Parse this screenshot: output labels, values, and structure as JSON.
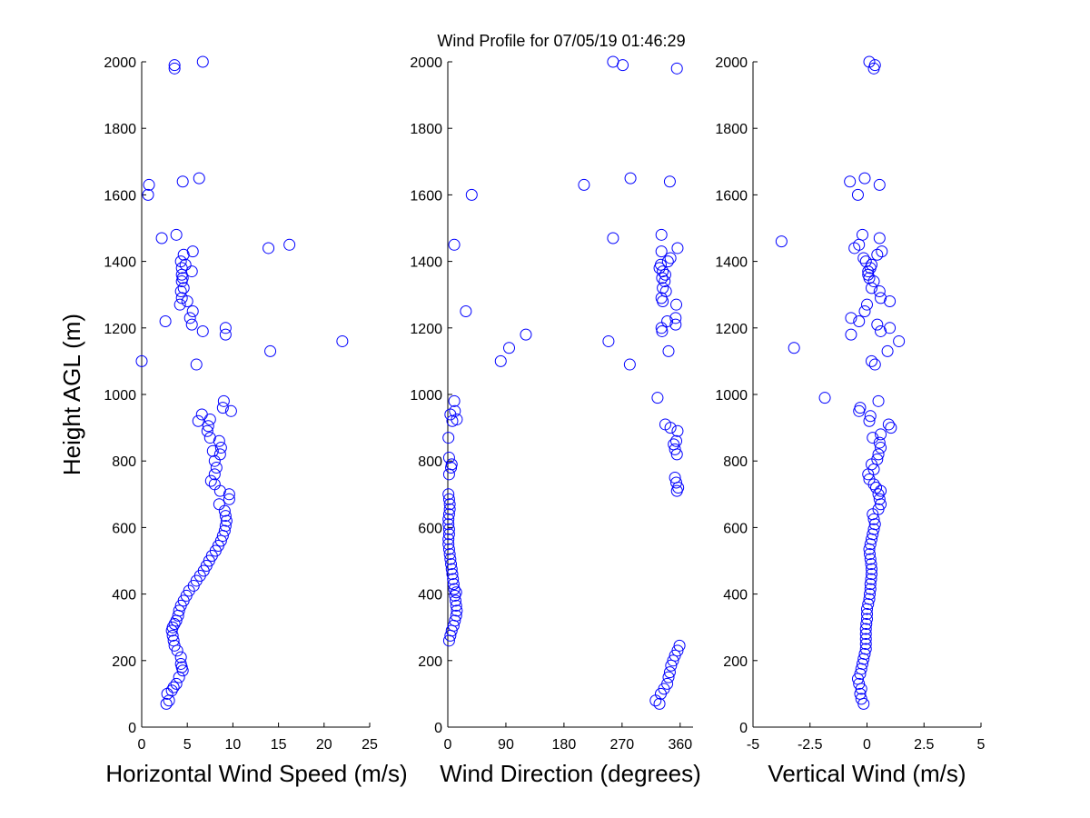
{
  "figure_title": "Wind Profile for  07/05/19 01:46:29",
  "marker_color": "#0000ff",
  "marker_style": "open-circle",
  "chart_data": [
    {
      "type": "scatter",
      "title": "",
      "xlabel": "Horizontal Wind Speed (m/s)",
      "ylabel": "Height AGL (m)",
      "xlim": [
        0,
        25
      ],
      "ylim": [
        0,
        2000
      ],
      "xticks": [
        "0",
        "5",
        "10",
        "15",
        "20",
        "25"
      ],
      "yticks": [
        "0",
        "200",
        "400",
        "600",
        "800",
        "1000",
        "1200",
        "1400",
        "1600",
        "1800",
        "2000"
      ],
      "grid": false,
      "points": [
        [
          2.7,
          70
        ],
        [
          3,
          80
        ],
        [
          2.8,
          100
        ],
        [
          3.3,
          110
        ],
        [
          3.8,
          130
        ],
        [
          3.5,
          120
        ],
        [
          4.1,
          150
        ],
        [
          4.5,
          170
        ],
        [
          4.4,
          180
        ],
        [
          4.3,
          190
        ],
        [
          4.3,
          210
        ],
        [
          3.9,
          230
        ],
        [
          3.6,
          245
        ],
        [
          3.5,
          260
        ],
        [
          3.4,
          275
        ],
        [
          3.3,
          290
        ],
        [
          3.4,
          300
        ],
        [
          3.6,
          310
        ],
        [
          3.8,
          320
        ],
        [
          4,
          335
        ],
        [
          4.1,
          350
        ],
        [
          4.3,
          365
        ],
        [
          4.6,
          380
        ],
        [
          4.9,
          395
        ],
        [
          5.2,
          410
        ],
        [
          5.7,
          425
        ],
        [
          6,
          440
        ],
        [
          6.4,
          455
        ],
        [
          6.8,
          470
        ],
        [
          7.1,
          485
        ],
        [
          7.4,
          500
        ],
        [
          7.7,
          515
        ],
        [
          8.1,
          530
        ],
        [
          8.4,
          545
        ],
        [
          8.7,
          560
        ],
        [
          8.9,
          575
        ],
        [
          9.1,
          590
        ],
        [
          9.2,
          605
        ],
        [
          9.3,
          620
        ],
        [
          9.2,
          635
        ],
        [
          9.1,
          650
        ],
        [
          8.5,
          670
        ],
        [
          9.6,
          685
        ],
        [
          9.6,
          700
        ],
        [
          8.6,
          710
        ],
        [
          8,
          730
        ],
        [
          7.6,
          740
        ],
        [
          8,
          760
        ],
        [
          8.2,
          780
        ],
        [
          8,
          800
        ],
        [
          8.6,
          820
        ],
        [
          7.8,
          830
        ],
        [
          8.7,
          840
        ],
        [
          8.5,
          860
        ],
        [
          7.5,
          870
        ],
        [
          7.2,
          890
        ],
        [
          7.3,
          905
        ],
        [
          6.2,
          920
        ],
        [
          7.5,
          925
        ],
        [
          6.6,
          940
        ],
        [
          9.8,
          950
        ],
        [
          8.9,
          960
        ],
        [
          9,
          980
        ],
        [
          0,
          1100
        ],
        [
          6,
          1090
        ],
        [
          14.1,
          1130
        ],
        [
          22,
          1160
        ],
        [
          9.2,
          1180
        ],
        [
          9.2,
          1200
        ],
        [
          6.7,
          1190
        ],
        [
          2.6,
          1220
        ],
        [
          5.5,
          1210
        ],
        [
          5.3,
          1230
        ],
        [
          5.6,
          1250
        ],
        [
          4.2,
          1270
        ],
        [
          5,
          1280
        ],
        [
          4.4,
          1290
        ],
        [
          4.3,
          1310
        ],
        [
          4.6,
          1320
        ],
        [
          4.4,
          1340
        ],
        [
          4.5,
          1350
        ],
        [
          4.4,
          1360
        ],
        [
          5.5,
          1370
        ],
        [
          4.4,
          1380
        ],
        [
          4.8,
          1390
        ],
        [
          4.3,
          1400
        ],
        [
          4.6,
          1420
        ],
        [
          5.6,
          1430
        ],
        [
          13.9,
          1440
        ],
        [
          16.2,
          1450
        ],
        [
          2.2,
          1470
        ],
        [
          3.8,
          1480
        ],
        [
          0.7,
          1600
        ],
        [
          0.8,
          1630
        ],
        [
          4.5,
          1640
        ],
        [
          6.3,
          1650
        ],
        [
          3.6,
          1980
        ],
        [
          3.6,
          1990
        ],
        [
          6.7,
          2000
        ]
      ]
    },
    {
      "type": "scatter",
      "title": "",
      "xlabel": "Wind Direction (degrees)",
      "ylabel": "",
      "xlim": [
        0,
        380
      ],
      "ylim": [
        0,
        2000
      ],
      "xticks": [
        "0",
        "90",
        "180",
        "270",
        "360"
      ],
      "yticks": [
        "0",
        "200",
        "400",
        "600",
        "800",
        "1000",
        "1200",
        "1400",
        "1600",
        "1800",
        "2000"
      ],
      "grid": false,
      "points": [
        [
          2,
          260
        ],
        [
          4,
          275
        ],
        [
          6,
          290
        ],
        [
          9,
          305
        ],
        [
          11,
          320
        ],
        [
          13,
          335
        ],
        [
          14,
          350
        ],
        [
          13,
          365
        ],
        [
          12,
          380
        ],
        [
          11,
          395
        ],
        [
          13,
          405
        ],
        [
          10,
          415
        ],
        [
          9,
          430
        ],
        [
          8,
          445
        ],
        [
          7,
          460
        ],
        [
          6,
          475
        ],
        [
          5,
          490
        ],
        [
          4,
          505
        ],
        [
          3,
          520
        ],
        [
          2,
          535
        ],
        [
          1,
          550
        ],
        [
          1,
          565
        ],
        [
          2,
          580
        ],
        [
          2,
          595
        ],
        [
          1,
          610
        ],
        [
          1,
          625
        ],
        [
          2,
          640
        ],
        [
          3,
          655
        ],
        [
          3,
          670
        ],
        [
          2,
          685
        ],
        [
          1,
          700
        ],
        [
          2,
          760
        ],
        [
          5,
          780
        ],
        [
          6,
          790
        ],
        [
          2,
          810
        ],
        [
          1,
          870
        ],
        [
          7,
          920
        ],
        [
          4,
          940
        ],
        [
          14,
          925
        ],
        [
          11,
          950
        ],
        [
          10,
          980
        ],
        [
          322,
          80
        ],
        [
          328,
          70
        ],
        [
          330,
          100
        ],
        [
          335,
          115
        ],
        [
          340,
          130
        ],
        [
          342,
          150
        ],
        [
          344,
          165
        ],
        [
          346,
          185
        ],
        [
          349,
          200
        ],
        [
          352,
          215
        ],
        [
          356,
          230
        ],
        [
          359,
          245
        ],
        [
          355,
          710
        ],
        [
          357,
          720
        ],
        [
          354,
          735
        ],
        [
          352,
          750
        ],
        [
          355,
          820
        ],
        [
          352,
          835
        ],
        [
          350,
          850
        ],
        [
          354,
          860
        ],
        [
          356,
          890
        ],
        [
          345,
          900
        ],
        [
          337,
          910
        ],
        [
          325,
          990
        ],
        [
          82,
          1100
        ],
        [
          95,
          1140
        ],
        [
          121,
          1180
        ],
        [
          249,
          1160
        ],
        [
          282,
          1090
        ],
        [
          342,
          1130
        ],
        [
          28,
          1250
        ],
        [
          331,
          1200
        ],
        [
          332,
          1190
        ],
        [
          353,
          1210
        ],
        [
          353,
          1230
        ],
        [
          354,
          1270
        ],
        [
          340,
          1220
        ],
        [
          333,
          1280
        ],
        [
          331,
          1290
        ],
        [
          338,
          1310
        ],
        [
          333,
          1320
        ],
        [
          336,
          1340
        ],
        [
          332,
          1350
        ],
        [
          337,
          1360
        ],
        [
          333,
          1370
        ],
        [
          328,
          1380
        ],
        [
          330,
          1390
        ],
        [
          341,
          1400
        ],
        [
          345,
          1410
        ],
        [
          331,
          1430
        ],
        [
          356,
          1440
        ],
        [
          256,
          1470
        ],
        [
          331,
          1480
        ],
        [
          10,
          1450
        ],
        [
          37,
          1600
        ],
        [
          211,
          1630
        ],
        [
          283,
          1650
        ],
        [
          344,
          1640
        ],
        [
          256,
          2000
        ],
        [
          271,
          1990
        ],
        [
          355,
          1980
        ]
      ]
    },
    {
      "type": "scatter",
      "title": "",
      "xlabel": "Vertical Wind (m/s)",
      "ylabel": "",
      "xlim": [
        -5,
        5
      ],
      "ylim": [
        0,
        2000
      ],
      "xticks": [
        "-5",
        "-2.5",
        "0",
        "2.5",
        "5"
      ],
      "yticks": [
        "0",
        "200",
        "400",
        "600",
        "800",
        "1000",
        "1200",
        "1400",
        "1600",
        "1800",
        "2000"
      ],
      "grid": false,
      "points": [
        [
          -0.15,
          70
        ],
        [
          -0.25,
          85
        ],
        [
          -0.3,
          100
        ],
        [
          -0.25,
          115
        ],
        [
          -0.35,
          130
        ],
        [
          -0.4,
          145
        ],
        [
          -0.3,
          160
        ],
        [
          -0.25,
          175
        ],
        [
          -0.2,
          190
        ],
        [
          -0.15,
          205
        ],
        [
          -0.1,
          220
        ],
        [
          -0.05,
          235
        ],
        [
          -0.05,
          250
        ],
        [
          -0.05,
          265
        ],
        [
          -0.05,
          280
        ],
        [
          -0.05,
          295
        ],
        [
          -0.03,
          310
        ],
        [
          0,
          325
        ],
        [
          0,
          340
        ],
        [
          0,
          355
        ],
        [
          0.05,
          370
        ],
        [
          0.1,
          385
        ],
        [
          0.12,
          400
        ],
        [
          0.15,
          415
        ],
        [
          0.15,
          430
        ],
        [
          0.18,
          445
        ],
        [
          0.2,
          460
        ],
        [
          0.2,
          475
        ],
        [
          0.18,
          490
        ],
        [
          0.15,
          505
        ],
        [
          0.12,
          520
        ],
        [
          0.1,
          535
        ],
        [
          0.15,
          550
        ],
        [
          0.2,
          565
        ],
        [
          0.25,
          580
        ],
        [
          0.3,
          595
        ],
        [
          0.35,
          610
        ],
        [
          0.3,
          625
        ],
        [
          0.25,
          640
        ],
        [
          0.5,
          655
        ],
        [
          0.6,
          670
        ],
        [
          0.55,
          685
        ],
        [
          0.5,
          700
        ],
        [
          0.6,
          710
        ],
        [
          0.4,
          720
        ],
        [
          0.3,
          730
        ],
        [
          0.1,
          745
        ],
        [
          0.05,
          760
        ],
        [
          0.3,
          775
        ],
        [
          0.2,
          790
        ],
        [
          0.45,
          805
        ],
        [
          0.5,
          820
        ],
        [
          0.6,
          840
        ],
        [
          0.55,
          855
        ],
        [
          0.25,
          870
        ],
        [
          0.6,
          880
        ],
        [
          1.05,
          900
        ],
        [
          0.95,
          910
        ],
        [
          0.1,
          920
        ],
        [
          0.15,
          935
        ],
        [
          -0.35,
          950
        ],
        [
          -0.3,
          960
        ],
        [
          0.5,
          980
        ],
        [
          -1.85,
          990
        ],
        [
          -3.2,
          1140
        ],
        [
          -0.7,
          1180
        ],
        [
          0.2,
          1100
        ],
        [
          0.35,
          1090
        ],
        [
          0.9,
          1130
        ],
        [
          1.4,
          1160
        ],
        [
          0.6,
          1190
        ],
        [
          1.0,
          1200
        ],
        [
          0.45,
          1210
        ],
        [
          -0.35,
          1220
        ],
        [
          -0.7,
          1230
        ],
        [
          -0.1,
          1250
        ],
        [
          0,
          1270
        ],
        [
          1.0,
          1280
        ],
        [
          0.6,
          1290
        ],
        [
          0.55,
          1310
        ],
        [
          0.2,
          1320
        ],
        [
          0.3,
          1340
        ],
        [
          0.1,
          1350
        ],
        [
          0.05,
          1360
        ],
        [
          0.05,
          1370
        ],
        [
          0.15,
          1380
        ],
        [
          0.2,
          1390
        ],
        [
          -0.05,
          1400
        ],
        [
          -0.15,
          1410
        ],
        [
          0.45,
          1420
        ],
        [
          0.65,
          1430
        ],
        [
          -0.55,
          1440
        ],
        [
          -0.35,
          1450
        ],
        [
          -3.75,
          1460
        ],
        [
          0.55,
          1470
        ],
        [
          -0.2,
          1480
        ],
        [
          -0.4,
          1600
        ],
        [
          0.55,
          1630
        ],
        [
          -0.75,
          1640
        ],
        [
          -0.1,
          1650
        ],
        [
          0.1,
          2000
        ],
        [
          0.35,
          1990
        ],
        [
          0.3,
          1980
        ]
      ]
    }
  ]
}
